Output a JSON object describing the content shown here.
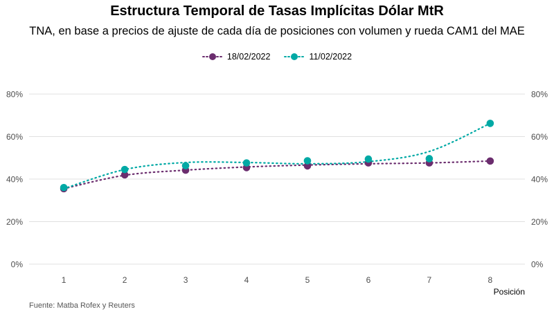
{
  "title": "Estructura Temporal de Tasas Implícitas Dólar MtR",
  "subtitle": "TNA, en base a precios de ajuste de cada día de posiciones con volumen y rueda CAM1 del MAE",
  "caption": "Fuente: Matba Rofex y Reuters",
  "chart_data": {
    "type": "line",
    "title": "Estructura Temporal de Tasas Implícitas Dólar MtR",
    "subtitle": "TNA, en base a precios de ajuste de cada día de posiciones con volumen y rueda CAM1 del MAE",
    "xlabel": "Posición",
    "ylabel": "",
    "x": [
      1,
      2,
      3,
      4,
      5,
      6,
      7,
      8
    ],
    "xticks": [
      "1",
      "2",
      "3",
      "4",
      "5",
      "6",
      "7",
      "8"
    ],
    "ylim": [
      0,
      80
    ],
    "yticks": [
      "0%",
      "20%",
      "40%",
      "60%",
      "80%"
    ],
    "ytick_values": [
      0,
      20,
      40,
      60,
      80
    ],
    "grid": true,
    "legend_position": "top",
    "series": [
      {
        "name": "18/02/2022",
        "color": "#6B2D6E",
        "values": [
          35.5,
          42.0,
          44.2,
          45.4,
          46.2,
          47.6,
          47.6,
          48.5
        ],
        "smooth": [
          35.5,
          41.8,
          44.2,
          45.7,
          46.6,
          47.2,
          47.6,
          48.5
        ]
      },
      {
        "name": "11/02/2022",
        "color": "#00A9A5",
        "values": [
          36.0,
          44.5,
          46.3,
          47.6,
          48.6,
          49.4,
          49.6,
          66.2
        ],
        "smooth": [
          35.5,
          44.5,
          47.8,
          47.8,
          47.2,
          48.2,
          53.0,
          66.2
        ]
      }
    ]
  }
}
